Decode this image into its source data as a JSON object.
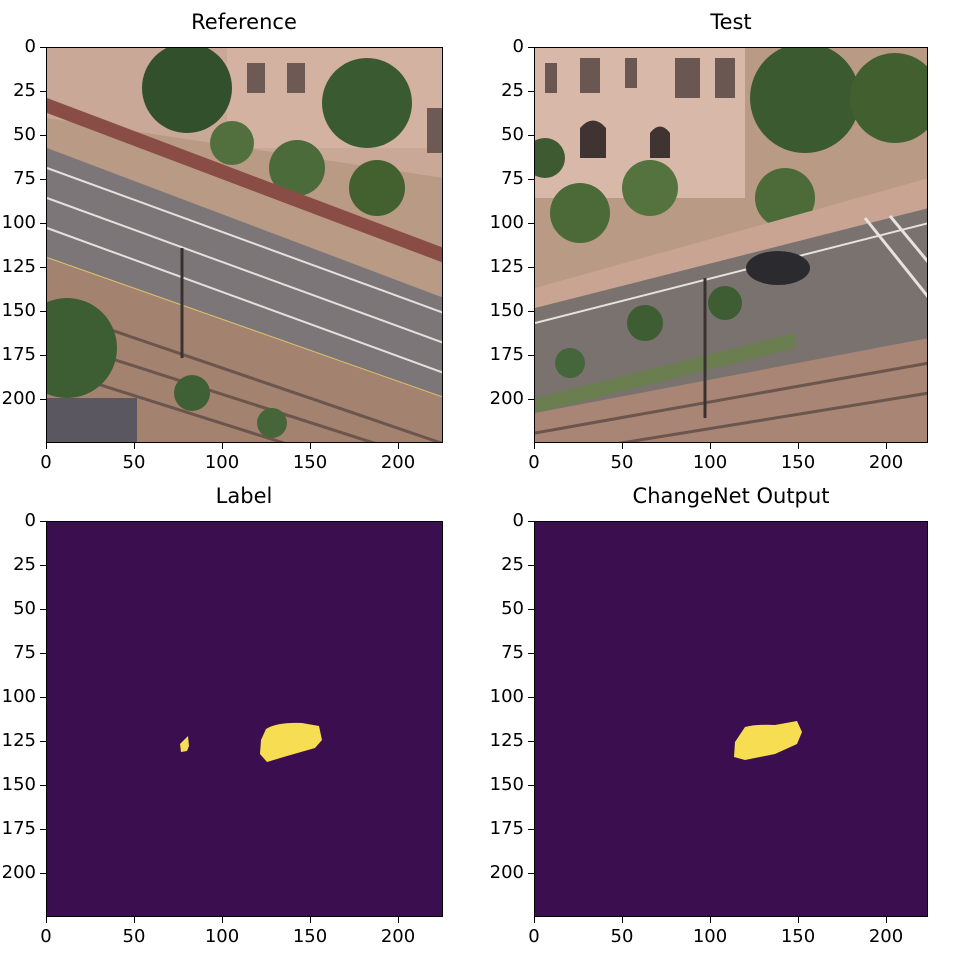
{
  "panels": [
    {
      "title": "Reference",
      "kind": "photo",
      "xticks": [
        "0",
        "50",
        "100",
        "150",
        "200"
      ],
      "yticks": [
        "0",
        "25",
        "50",
        "75",
        "100",
        "125",
        "150",
        "175",
        "200"
      ]
    },
    {
      "title": "Test",
      "kind": "photo",
      "xticks": [
        "0",
        "50",
        "100",
        "150",
        "200"
      ],
      "yticks": [
        "0",
        "25",
        "50",
        "75",
        "100",
        "125",
        "150",
        "175",
        "200"
      ]
    },
    {
      "title": "Label",
      "kind": "mask",
      "xticks": [
        "0",
        "50",
        "100",
        "150",
        "200"
      ],
      "yticks": [
        "0",
        "25",
        "50",
        "75",
        "100",
        "125",
        "150",
        "175",
        "200"
      ]
    },
    {
      "title": "ChangeNet Output",
      "kind": "mask",
      "xticks": [
        "0",
        "50",
        "100",
        "150",
        "200"
      ],
      "yticks": [
        "0",
        "25",
        "50",
        "75",
        "100",
        "125",
        "150",
        "175",
        "200"
      ]
    }
  ],
  "colors": {
    "mask_background": "#3b0f4f",
    "mask_foreground": "#f6dd52"
  }
}
